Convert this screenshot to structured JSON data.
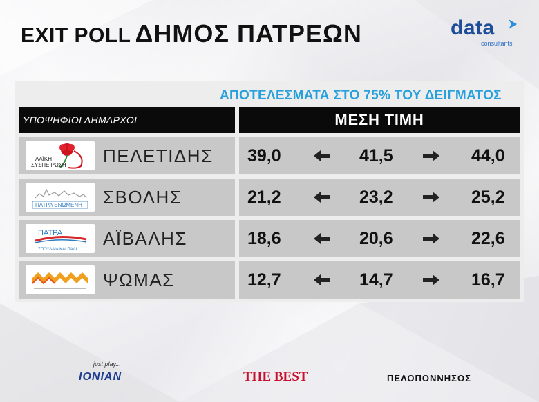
{
  "header": {
    "title_part1": "EXIT POLL",
    "title_part2": "ΔΗΜΟΣ ΠΑΤΡΕΩΝ",
    "brand_word": "data",
    "brand_sub": "consultants"
  },
  "subtitle": "ΑΠΟΤΕΛΕΣΜΑΤΑ ΣΤΟ 75% ΤΟΥ ΔΕΙΓΜΑΤΟΣ",
  "table": {
    "col_candidates": "ΥΠΟΨΗΦΙΟΙ ΔΗΜΑΡΧΟΙ",
    "col_average": "ΜΕΣΗ ΤΙΜΗ",
    "rows": [
      {
        "name": "ΠΕΛΕΤΙΔΗΣ",
        "low": "39,0",
        "mid": "41,5",
        "high": "44,0",
        "logo_text": [
          "ΛΑΪΚΗ",
          "ΣΥΣΠΕΙΡΩΣΗ"
        ],
        "logo_icon": "red-carnation-icon"
      },
      {
        "name": "ΣΒΟΛΗΣ",
        "low": "21,2",
        "mid": "23,2",
        "high": "25,2",
        "logo_text": [
          "ΠΑΤΡΑ ΕΝΩΜΕΝΗ"
        ],
        "logo_icon": "city-skyline-icon"
      },
      {
        "name": "ΑΪΒΑΛΗΣ",
        "low": "18,6",
        "mid": "20,6",
        "high": "22,6",
        "logo_text": [
          "ΠΑΤΡΑ",
          "ΣΠΟΥΔΑΙΑ ΚΑΙ ΠΑΛΙ"
        ],
        "logo_icon": "swoosh-icon"
      },
      {
        "name": "ΨΩΜΑΣ",
        "low": "12,7",
        "mid": "14,7",
        "high": "16,7",
        "logo_text": [],
        "logo_icon": "zigzag-icon"
      }
    ]
  },
  "footer": {
    "ionian_tag": "just play...",
    "ionian": "IONIAN",
    "thebest": "THE BEST",
    "pelop": "ΠΕΛΟΠΟΝΝΗΣΟΣ"
  },
  "colors": {
    "subtitle": "#27a0dc",
    "header_bg": "#0a0a0a",
    "row_bg": "#c8c8c8",
    "brand": "#1f4e99"
  }
}
